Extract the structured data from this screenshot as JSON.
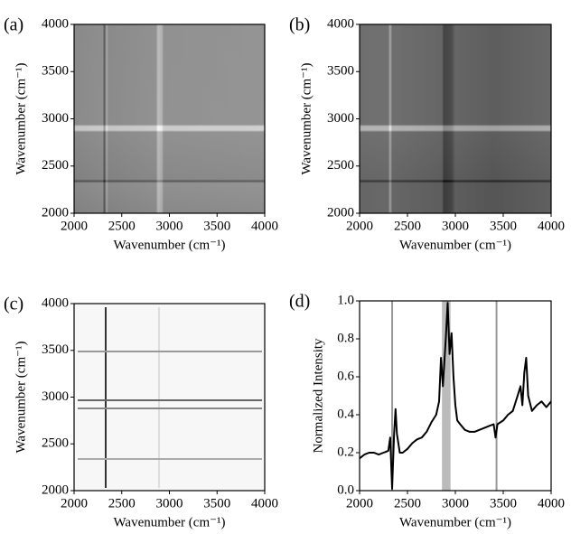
{
  "chart_data": [
    {
      "type": "heatmap",
      "label": "(a)",
      "xlabel": "Wavenumber (cm⁻¹)",
      "ylabel": "Wavenumber (cm⁻¹)",
      "xlim": [
        2000,
        4000
      ],
      "ylim": [
        2000,
        4000
      ],
      "xticks": [
        2000,
        2500,
        3000,
        3500,
        4000
      ],
      "yticks": [
        2000,
        2500,
        3000,
        3500,
        4000
      ]
    },
    {
      "type": "heatmap",
      "label": "(b)",
      "xlabel": "Wavenumber (cm⁻¹)",
      "ylabel": "Wavenumber (cm⁻¹)",
      "xlim": [
        2000,
        4000
      ],
      "ylim": [
        2000,
        4000
      ],
      "xticks": [
        2000,
        2500,
        3000,
        3500,
        4000
      ],
      "yticks": [
        2000,
        2500,
        3000,
        3500,
        4000
      ]
    },
    {
      "type": "heatmap",
      "label": "(c)",
      "xlabel": "Wavenumber (cm⁻¹)",
      "ylabel": "Wavenumber (cm⁻¹)",
      "xlim": [
        2000,
        4000
      ],
      "ylim": [
        2000,
        4000
      ],
      "xticks": [
        2000,
        2500,
        3000,
        3500,
        4000
      ],
      "yticks": [
        2000,
        2500,
        3000,
        3500,
        4000
      ]
    },
    {
      "type": "line",
      "label": "(d)",
      "xlabel": "Wavenumber (cm⁻¹)",
      "ylabel": "Normalized Intensity",
      "xlim": [
        2000,
        4000
      ],
      "ylim": [
        0,
        1
      ],
      "xticks": [
        2000,
        2500,
        3000,
        3500,
        4000
      ],
      "yticks": [
        0.0,
        0.2,
        0.4,
        0.6,
        0.8,
        1.0
      ],
      "vlines": [
        2340,
        3430
      ],
      "vline_color": "#999999",
      "span": [
        2860,
        2950
      ],
      "span_color": "#bbbbbb",
      "x": [
        2000,
        2050,
        2100,
        2150,
        2200,
        2250,
        2300,
        2320,
        2340,
        2360,
        2375,
        2390,
        2420,
        2450,
        2500,
        2550,
        2600,
        2650,
        2700,
        2750,
        2800,
        2830,
        2850,
        2870,
        2900,
        2920,
        2940,
        2960,
        2980,
        3000,
        3020,
        3050,
        3100,
        3150,
        3200,
        3250,
        3300,
        3350,
        3400,
        3420,
        3440,
        3500,
        3550,
        3600,
        3650,
        3680,
        3700,
        3720,
        3740,
        3760,
        3800,
        3850,
        3900,
        3950,
        4000
      ],
      "series": [
        {
          "color": "#000000",
          "values": [
            0.17,
            0.19,
            0.2,
            0.2,
            0.19,
            0.2,
            0.21,
            0.28,
            0.01,
            0.3,
            0.43,
            0.3,
            0.2,
            0.2,
            0.22,
            0.25,
            0.27,
            0.28,
            0.31,
            0.36,
            0.4,
            0.47,
            0.7,
            0.55,
            0.8,
            0.99,
            0.72,
            0.83,
            0.6,
            0.45,
            0.37,
            0.35,
            0.32,
            0.31,
            0.31,
            0.32,
            0.33,
            0.34,
            0.35,
            0.28,
            0.35,
            0.37,
            0.4,
            0.42,
            0.5,
            0.55,
            0.45,
            0.62,
            0.7,
            0.5,
            0.42,
            0.45,
            0.47,
            0.44,
            0.47
          ]
        }
      ]
    }
  ]
}
